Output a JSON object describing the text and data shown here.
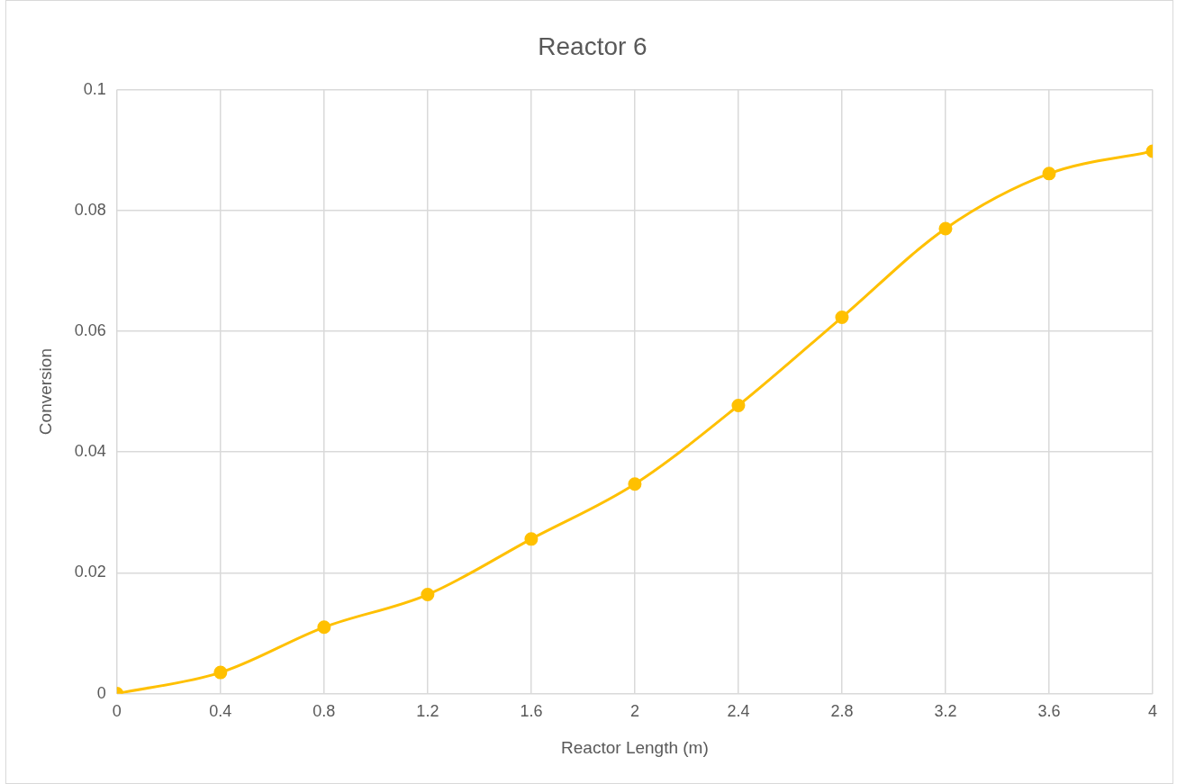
{
  "chart_data": {
    "type": "line",
    "title": "Reactor 6",
    "xlabel": "Reactor Length (m)",
    "ylabel": "Conversion",
    "x": [
      0,
      0.4,
      0.8,
      1.2,
      1.6,
      2,
      2.4,
      2.8,
      3.2,
      3.6,
      4
    ],
    "series": [
      {
        "color": "#ffc000",
        "values": [
          0,
          0.0035,
          0.011,
          0.0164,
          0.0256,
          0.0347,
          0.0477,
          0.0623,
          0.077,
          0.0861,
          0.0898
        ]
      }
    ],
    "xlim": [
      0,
      4
    ],
    "xticks": [
      0,
      0.4,
      0.8,
      1.2,
      1.6,
      2,
      2.4,
      2.8,
      3.2,
      3.6,
      4
    ],
    "ylim": [
      0,
      0.1
    ],
    "yticks": [
      0,
      0.02,
      0.04,
      0.06,
      0.08,
      0.1
    ],
    "grid": true,
    "legend": false,
    "marker": "circle",
    "line_style": "solid"
  }
}
